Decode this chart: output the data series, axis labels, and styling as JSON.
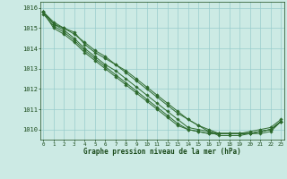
{
  "title": "Graphe pression niveau de la mer (hPa)",
  "x": [
    0,
    1,
    2,
    3,
    4,
    5,
    6,
    7,
    8,
    9,
    10,
    11,
    12,
    13,
    14,
    15,
    16,
    17,
    18,
    19,
    20,
    21,
    22,
    23
  ],
  "series": [
    [
      1015.8,
      1015.2,
      1015.0,
      1014.8,
      1014.2,
      1013.8,
      1013.5,
      1013.2,
      1012.8,
      1012.4,
      1012.0,
      1011.6,
      1011.2,
      1010.8,
      1010.5,
      1010.2,
      1009.9,
      1009.7,
      1009.7,
      1009.7,
      1009.8,
      1009.8,
      1009.9,
      1010.4
    ],
    [
      1015.8,
      1015.3,
      1015.0,
      1014.7,
      1014.3,
      1013.9,
      1013.6,
      1013.2,
      1012.9,
      1012.5,
      1012.1,
      1011.7,
      1011.3,
      1010.9,
      1010.5,
      1010.2,
      1010.0,
      1009.8,
      1009.8,
      1009.8,
      1009.8,
      1009.9,
      1010.0,
      1010.4
    ],
    [
      1015.8,
      1015.2,
      1014.9,
      1014.5,
      1014.0,
      1013.6,
      1013.2,
      1012.9,
      1012.5,
      1012.1,
      1011.7,
      1011.3,
      1010.9,
      1010.5,
      1010.1,
      1010.0,
      1009.9,
      1009.8,
      1009.8,
      1009.8,
      1009.8,
      1009.9,
      1010.0,
      1010.4
    ],
    [
      1015.8,
      1015.0,
      1014.7,
      1014.3,
      1013.8,
      1013.4,
      1013.0,
      1012.6,
      1012.2,
      1011.8,
      1011.4,
      1011.0,
      1010.6,
      1010.2,
      1010.0,
      1009.9,
      1009.8,
      1009.8,
      1009.8,
      1009.8,
      1009.8,
      1009.9,
      1010.0,
      1010.4
    ],
    [
      1015.7,
      1015.1,
      1014.8,
      1014.4,
      1013.9,
      1013.5,
      1013.1,
      1012.7,
      1012.3,
      1011.9,
      1011.5,
      1011.1,
      1010.7,
      1010.3,
      1010.0,
      1009.9,
      1009.8,
      1009.8,
      1009.8,
      1009.8,
      1009.9,
      1010.0,
      1010.1,
      1010.5
    ]
  ],
  "line_color": "#2d6a2d",
  "marker": "D",
  "marker_size": 1.8,
  "bg_color": "#cceae4",
  "grid_color": "#99cccc",
  "label_color": "#1a4a1a",
  "ylim": [
    1009.5,
    1016.3
  ],
  "yticks": [
    1010,
    1011,
    1012,
    1013,
    1014,
    1015,
    1016
  ],
  "xticks": [
    0,
    1,
    2,
    3,
    4,
    5,
    6,
    7,
    8,
    9,
    10,
    11,
    12,
    13,
    14,
    15,
    16,
    17,
    18,
    19,
    20,
    21,
    22,
    23
  ]
}
